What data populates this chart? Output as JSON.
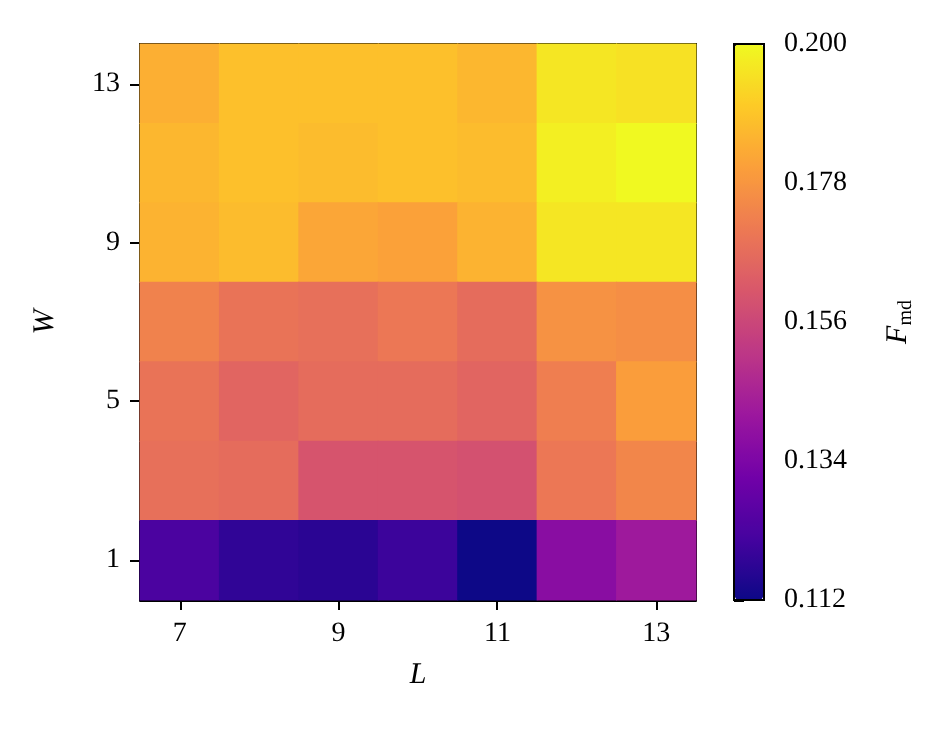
{
  "chart_data": {
    "type": "heatmap",
    "xlabel": "L",
    "ylabel": "W",
    "clabel": "F$_{md}$",
    "categories": [
      "7",
      null,
      "9",
      null,
      "11",
      null,
      "13"
    ],
    "y_categories": [
      "13",
      null,
      "9",
      null,
      "5",
      null,
      "1"
    ],
    "cells": [
      [
        0.184,
        0.188,
        0.188,
        0.188,
        0.186,
        0.196,
        0.195
      ],
      [
        0.186,
        0.188,
        0.187,
        0.188,
        0.187,
        0.198,
        0.2
      ],
      [
        0.185,
        0.187,
        0.182,
        0.181,
        0.185,
        0.196,
        0.196
      ],
      [
        0.173,
        0.169,
        0.168,
        0.17,
        0.167,
        0.177,
        0.176
      ],
      [
        0.169,
        0.165,
        0.167,
        0.167,
        0.165,
        0.172,
        0.18
      ],
      [
        0.168,
        0.167,
        0.16,
        0.16,
        0.159,
        0.17,
        0.174
      ],
      [
        0.123,
        0.118,
        0.117,
        0.12,
        0.112,
        0.137,
        0.142
      ]
    ],
    "clim": [
      0.112,
      0.2
    ],
    "cticks": [
      {
        "value": 0.112,
        "label": "0.112"
      },
      {
        "value": 0.134,
        "label": "0.134"
      },
      {
        "value": 0.156,
        "label": "0.156"
      },
      {
        "value": 0.178,
        "label": "0.178"
      },
      {
        "value": 0.2,
        "label": "0.200"
      }
    ]
  }
}
